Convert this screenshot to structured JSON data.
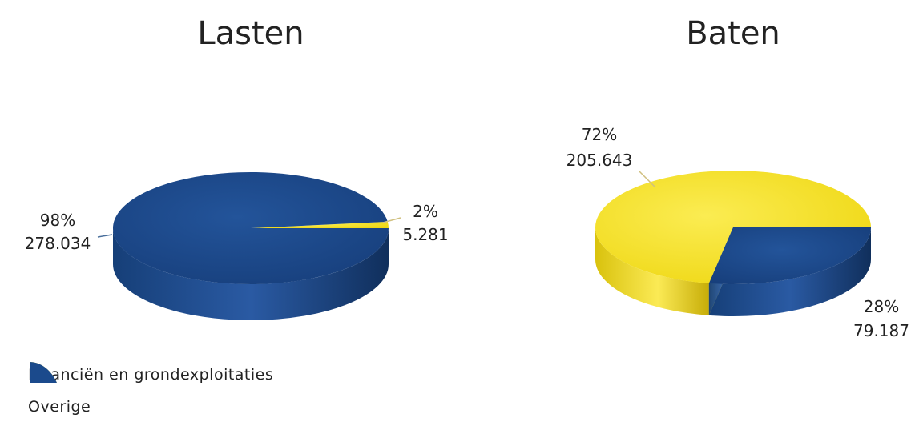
{
  "chart_data": [
    {
      "type": "pie",
      "title": "Lasten",
      "slices": [
        {
          "name": "Financiën en grondexploitaties",
          "percent_label": "2%",
          "value_label": "5.281",
          "value": 5281
        },
        {
          "name": "Overige",
          "percent_label": "98%",
          "value_label": "278.034",
          "value": 278034
        }
      ]
    },
    {
      "type": "pie",
      "title": "Baten",
      "slices": [
        {
          "name": "Financiën en grondexploitaties",
          "percent_label": "72%",
          "value_label": "205.643",
          "value": 205643
        },
        {
          "name": "Overige",
          "percent_label": "28%",
          "value_label": "79.187",
          "value": 79187
        }
      ]
    }
  ],
  "legend": [
    {
      "label": "Financiën en grondexploitaties",
      "color": "#f3df20"
    },
    {
      "label": "Overige",
      "color": "#1b4a8c"
    }
  ],
  "colors": {
    "yellow_top": "#f3df20",
    "yellow_side": "#c9b10a",
    "blue_top": "#1b4a8c",
    "blue_side": "#123766"
  }
}
